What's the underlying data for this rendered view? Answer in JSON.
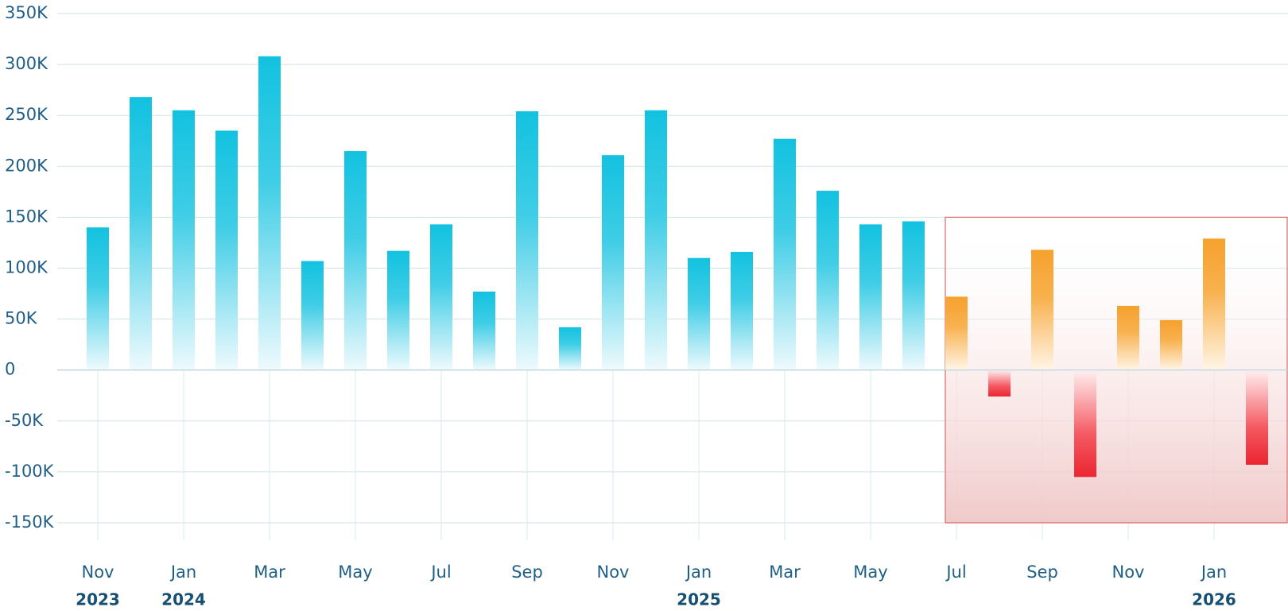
{
  "chart_data": {
    "type": "bar",
    "title": "",
    "xlabel": "",
    "ylabel": "",
    "ylim": [
      -150000,
      350000
    ],
    "y_ticks": [
      {
        "value": 350000,
        "label": "350K"
      },
      {
        "value": 300000,
        "label": "300K"
      },
      {
        "value": 250000,
        "label": "250K"
      },
      {
        "value": 200000,
        "label": "200K"
      },
      {
        "value": 150000,
        "label": "150K"
      },
      {
        "value": 100000,
        "label": "100K"
      },
      {
        "value": 50000,
        "label": "50K"
      },
      {
        "value": 0,
        "label": "0"
      },
      {
        "value": -50000,
        "label": "-50K"
      },
      {
        "value": -100000,
        "label": "-100K"
      },
      {
        "value": -150000,
        "label": "-150K"
      }
    ],
    "x_ticks": [
      {
        "month": "2023-11",
        "label": "Nov"
      },
      {
        "month": "2024-01",
        "label": "Jan"
      },
      {
        "month": "2024-03",
        "label": "Mar"
      },
      {
        "month": "2024-05",
        "label": "May"
      },
      {
        "month": "2024-07",
        "label": "Jul"
      },
      {
        "month": "2024-09",
        "label": "Sep"
      },
      {
        "month": "2024-11",
        "label": "Nov"
      },
      {
        "month": "2025-01",
        "label": "Jan"
      },
      {
        "month": "2025-03",
        "label": "Mar"
      },
      {
        "month": "2025-05",
        "label": "May"
      },
      {
        "month": "2025-07",
        "label": "Jul"
      },
      {
        "month": "2025-09",
        "label": "Sep"
      },
      {
        "month": "2025-11",
        "label": "Nov"
      },
      {
        "month": "2026-01",
        "label": "Jan"
      }
    ],
    "year_labels": [
      {
        "month": "2023-11",
        "label": "2023"
      },
      {
        "month": "2024-01",
        "label": "2024"
      },
      {
        "month": "2025-01",
        "label": "2025"
      },
      {
        "month": "2026-01",
        "label": "2026"
      }
    ],
    "series": [
      {
        "x": [
          "2023-11",
          "2023-12",
          "2024-01",
          "2024-02",
          "2024-03",
          "2024-04",
          "2024-05",
          "2024-06",
          "2024-07",
          "2024-08",
          "2024-09",
          "2024-10",
          "2024-11",
          "2024-12",
          "2025-01",
          "2025-02",
          "2025-03",
          "2025-04",
          "2025-05",
          "2025-06",
          "2025-07",
          "2025-08",
          "2025-09",
          "2025-10",
          "2025-11",
          "2025-12",
          "2026-01",
          "2026-02"
        ],
        "values": [
          140000,
          268000,
          255000,
          235000,
          308000,
          107000,
          215000,
          117000,
          143000,
          77000,
          254000,
          42000,
          211000,
          255000,
          110000,
          116000,
          227000,
          176000,
          143000,
          146000,
          72000,
          -26000,
          118000,
          -105000,
          63000,
          49000,
          129000,
          -93000
        ]
      }
    ],
    "projection_start": "2025-07",
    "highlight_region": {
      "x_start": "2025-07",
      "y_range": [
        -150000,
        150000
      ]
    },
    "colors": {
      "actual": "#12c2e0",
      "projected_positive": "#f6a12d",
      "negative": "#eb2530",
      "axis_text": "#1f5f86",
      "year_text": "#174f72",
      "grid": "#cfe2e8",
      "highlight_border": "#d66a6a"
    },
    "grid": true,
    "legend": "none"
  }
}
